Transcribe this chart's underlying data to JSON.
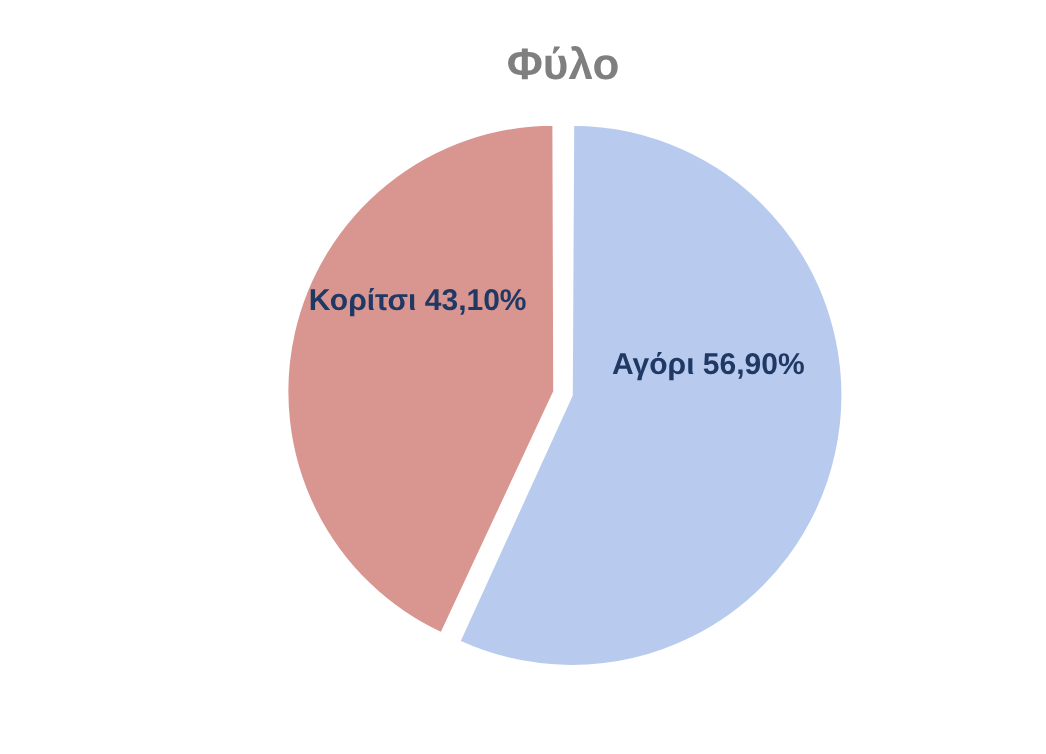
{
  "chart_data": {
    "type": "pie",
    "title": "Φύλο",
    "categories": [
      "Αγόρι",
      "Κορίτσι"
    ],
    "values": [
      56.9,
      43.1
    ],
    "colors": [
      "#b8cbee",
      "#d9958f"
    ],
    "value_labels": [
      "56,90%",
      "43,10%"
    ],
    "legend": false
  }
}
